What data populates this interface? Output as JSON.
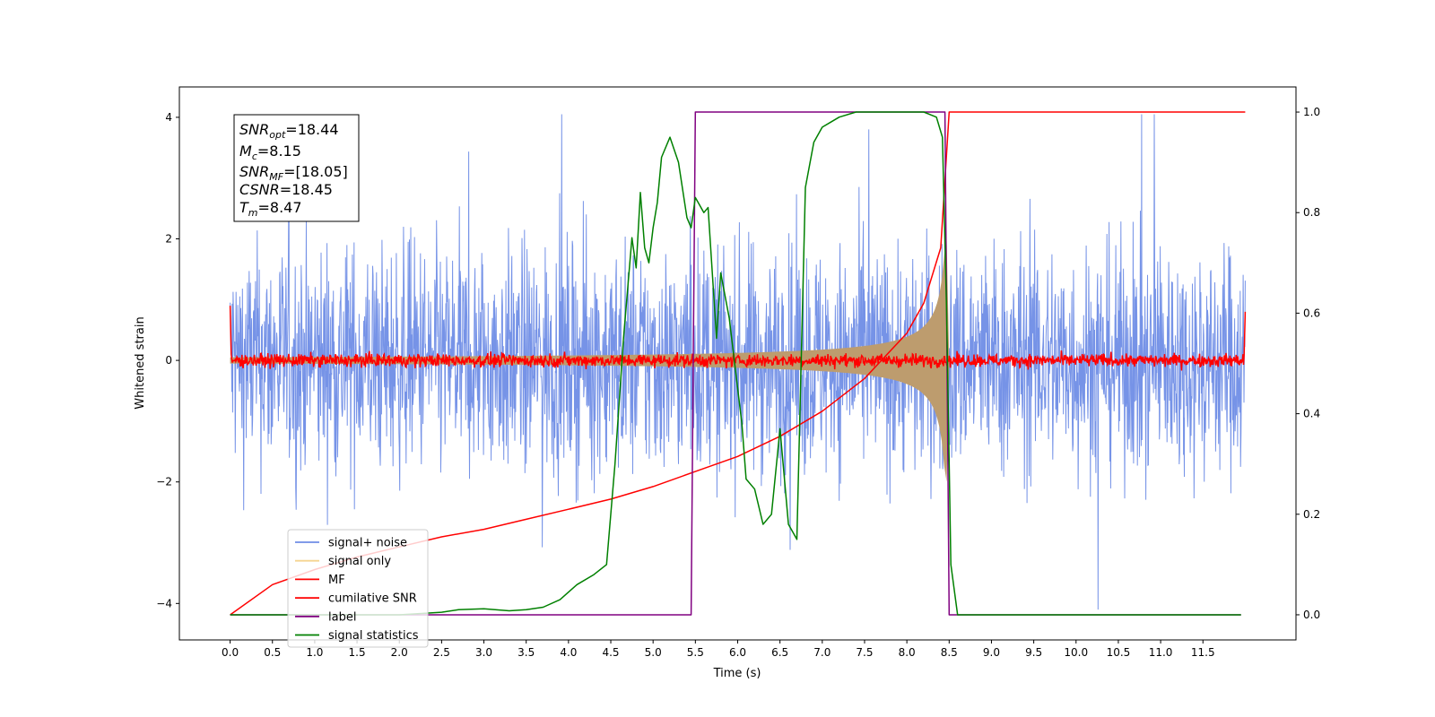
{
  "chart_data": {
    "type": "line",
    "xlabel": "Time (s)",
    "ylabel": "Whitened strain",
    "xlim": [
      -0.6,
      12.6
    ],
    "ylim": [
      -4.6,
      4.5
    ],
    "ylim_right": [
      -0.05,
      1.05
    ],
    "x_ticks": [
      "0.0",
      "0.5",
      "1.0",
      "1.5",
      "2.0",
      "2.5",
      "3.0",
      "3.5",
      "4.0",
      "4.5",
      "5.0",
      "5.5",
      "6.0",
      "6.5",
      "7.0",
      "7.5",
      "8.0",
      "8.5",
      "9.0",
      "9.5",
      "10.0",
      "10.5",
      "11.0",
      "11.5"
    ],
    "y_ticks_left": [
      "4",
      "2",
      "0",
      "−2",
      "−4"
    ],
    "y_ticks_right": [
      "1.0",
      "0.8",
      "0.6",
      "0.4",
      "0.2",
      "0.0"
    ],
    "legend_position": "lower-left",
    "legend": [
      {
        "label": "signal+ noise",
        "color": "#6f8de6"
      },
      {
        "label": "signal only",
        "color": "#f5d491"
      },
      {
        "label": "MF",
        "color": "#ff0000"
      },
      {
        "label": "cumilative SNR",
        "color": "#ff0000"
      },
      {
        "label": "label",
        "color": "#800080"
      },
      {
        "label": "signal statistics",
        "color": "#008000"
      }
    ],
    "annotation": {
      "line1_main": "SNR",
      "line1_sub": "opt",
      "line1_rest": "=18.44",
      "line2_main": "M",
      "line2_sub": "c",
      "line2_rest": "=8.15",
      "line3_main": "SNR",
      "line3_sub": "MF",
      "line3_rest": "=[18.05]",
      "line4_main": "CSNR",
      "line4_rest": "=18.45",
      "line5_main": "T",
      "line5_sub": "m",
      "line5_rest": "=8.47"
    },
    "series": [
      {
        "name": "signal+ noise",
        "axis": "left",
        "kind": "noise",
        "x_range": [
          0,
          12
        ],
        "amplitude_envelope": [
          -4.1,
          4.05
        ]
      },
      {
        "name": "signal only",
        "axis": "left",
        "kind": "chirp",
        "x_range": [
          0,
          8.5
        ],
        "peak_time": 8.47,
        "peak_amplitude": 2.0
      },
      {
        "name": "MF",
        "axis": "left",
        "kind": "noise-small",
        "x_range": [
          0,
          12
        ],
        "amplitude": 0.12
      },
      {
        "name": "cumilative SNR",
        "axis": "right",
        "x": [
          0.0,
          0.5,
          1.0,
          1.5,
          2.0,
          2.5,
          3.0,
          3.5,
          4.0,
          4.5,
          5.0,
          5.5,
          6.0,
          6.5,
          7.0,
          7.5,
          8.0,
          8.2,
          8.4,
          8.5,
          12.0
        ],
        "y": [
          0.0,
          0.06,
          0.09,
          0.115,
          0.135,
          0.155,
          0.17,
          0.19,
          0.21,
          0.23,
          0.255,
          0.285,
          0.315,
          0.355,
          0.405,
          0.47,
          0.56,
          0.62,
          0.73,
          1.0,
          1.0
        ]
      },
      {
        "name": "label",
        "axis": "right",
        "x": [
          0.0,
          5.45,
          5.5,
          8.45,
          8.5,
          11.95
        ],
        "y": [
          0.0,
          0.0,
          1.0,
          1.0,
          0.0,
          0.0
        ]
      },
      {
        "name": "signal statistics",
        "axis": "right",
        "x": [
          0.0,
          2.0,
          2.5,
          2.7,
          3.0,
          3.3,
          3.5,
          3.7,
          3.9,
          4.1,
          4.3,
          4.45,
          4.55,
          4.65,
          4.75,
          4.8,
          4.85,
          4.9,
          4.95,
          5.0,
          5.05,
          5.1,
          5.2,
          5.3,
          5.4,
          5.45,
          5.5,
          5.6,
          5.65,
          5.7,
          5.75,
          5.8,
          5.9,
          6.0,
          6.05,
          6.1,
          6.2,
          6.3,
          6.4,
          6.5,
          6.6,
          6.7,
          6.8,
          6.9,
          7.0,
          7.1,
          7.2,
          7.4,
          7.6,
          7.8,
          8.0,
          8.2,
          8.35,
          8.42,
          8.47,
          8.52,
          8.6,
          11.95
        ],
        "y": [
          0.0,
          0.0,
          0.005,
          0.01,
          0.012,
          0.008,
          0.01,
          0.015,
          0.03,
          0.06,
          0.08,
          0.1,
          0.3,
          0.55,
          0.75,
          0.69,
          0.84,
          0.73,
          0.7,
          0.77,
          0.82,
          0.91,
          0.95,
          0.9,
          0.79,
          0.77,
          0.83,
          0.8,
          0.81,
          0.68,
          0.55,
          0.68,
          0.59,
          0.45,
          0.38,
          0.27,
          0.25,
          0.18,
          0.2,
          0.37,
          0.18,
          0.15,
          0.85,
          0.94,
          0.97,
          0.98,
          0.99,
          1.0,
          1.0,
          1.0,
          1.0,
          1.0,
          0.99,
          0.95,
          0.6,
          0.1,
          0.0,
          0.0
        ]
      }
    ]
  }
}
